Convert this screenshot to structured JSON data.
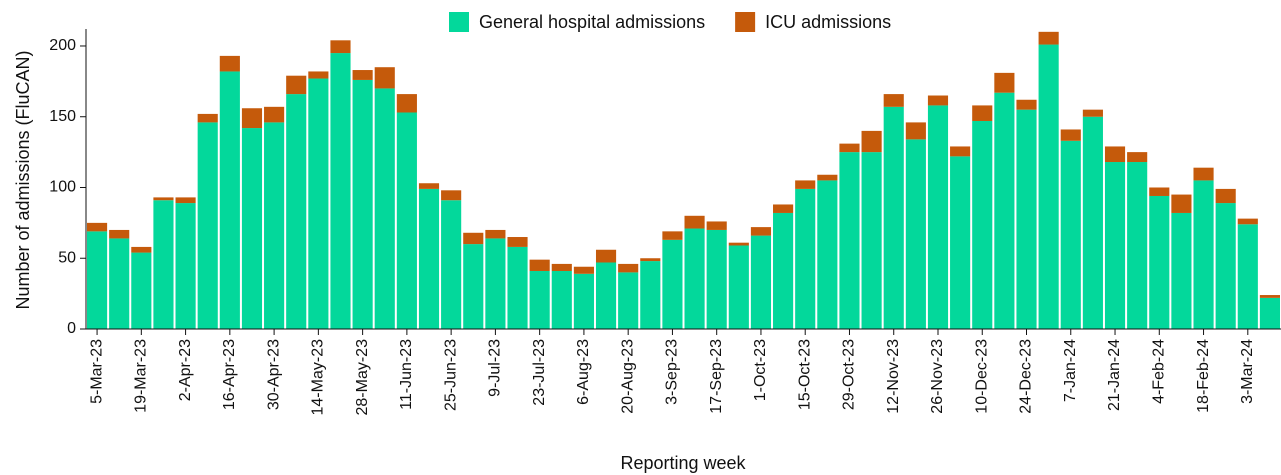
{
  "chart_data": {
    "type": "stacked-bar",
    "y_label": "Number of admissions (FluCAN)",
    "x_label": "Reporting week",
    "categories": [
      "5-Mar-23",
      null,
      "19-Mar-23",
      null,
      "2-Apr-23",
      null,
      "16-Apr-23",
      null,
      "30-Apr-23",
      null,
      "14-May-23",
      null,
      "28-May-23",
      null,
      "11-Jun-23",
      null,
      "25-Jun-23",
      null,
      "9-Jul-23",
      null,
      "23-Jul-23",
      null,
      "6-Aug-23",
      null,
      "20-Aug-23",
      null,
      "3-Sep-23",
      null,
      "17-Sep-23",
      null,
      "1-Oct-23",
      null,
      "15-Oct-23",
      null,
      "29-Oct-23",
      null,
      "12-Nov-23",
      null,
      "26-Nov-23",
      null,
      "10-Dec-23",
      null,
      "24-Dec-23",
      null,
      "7-Jan-24",
      null,
      "21-Jan-24",
      null,
      "4-Feb-24",
      null,
      "18-Feb-24",
      null,
      "3-Mar-24",
      null
    ],
    "series": [
      {
        "name": "General hospital admissions",
        "color": "#03d89b",
        "values": [
          69,
          64,
          54,
          91,
          89,
          146,
          182,
          142,
          146,
          166,
          177,
          195,
          176,
          170,
          153,
          99,
          91,
          60,
          64,
          58,
          41,
          41,
          39,
          47,
          40,
          48,
          63,
          71,
          70,
          59,
          66,
          82,
          99,
          105,
          125,
          125,
          157,
          134,
          158,
          122,
          147,
          167,
          155,
          201,
          133,
          150,
          118,
          118,
          94,
          82,
          105,
          89,
          74,
          22
        ]
      },
      {
        "name": "ICU admissions",
        "color": "#c55a0b",
        "values": [
          6,
          6,
          4,
          2,
          4,
          6,
          11,
          14,
          11,
          13,
          5,
          9,
          7,
          15,
          13,
          4,
          7,
          8,
          6,
          7,
          8,
          5,
          5,
          9,
          6,
          2,
          6,
          9,
          6,
          2,
          6,
          6,
          6,
          4,
          6,
          15,
          9,
          12,
          7,
          7,
          11,
          14,
          7,
          9,
          8,
          5,
          11,
          7,
          6,
          13,
          9,
          10,
          4,
          2
        ]
      }
    ],
    "ylim": [
      0,
      212
    ],
    "yticks": [
      0,
      50,
      100,
      150,
      200
    ]
  }
}
